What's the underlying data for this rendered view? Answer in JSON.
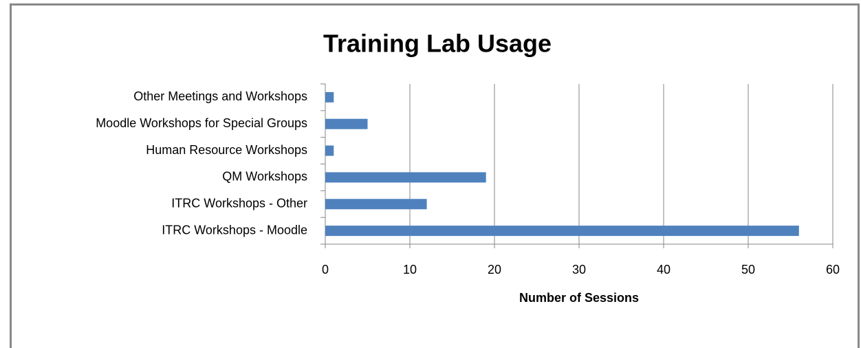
{
  "chart_data": {
    "type": "bar",
    "orientation": "horizontal",
    "title": "Training Lab Usage",
    "categories": [
      "Other Meetings and Workshops",
      "Moodle Workshops for Special Groups",
      "Human Resource Workshops",
      "QM Workshops",
      "ITRC Workshops - Other",
      "ITRC Workshops - Moodle"
    ],
    "values": [
      1,
      5,
      1,
      19,
      12,
      56
    ],
    "color": "#4f81bd",
    "xlabel": "Number of Sessions",
    "xlim": [
      0,
      60
    ],
    "xticks": [
      0,
      10,
      20,
      30,
      40,
      50,
      60
    ],
    "grid": true
  }
}
